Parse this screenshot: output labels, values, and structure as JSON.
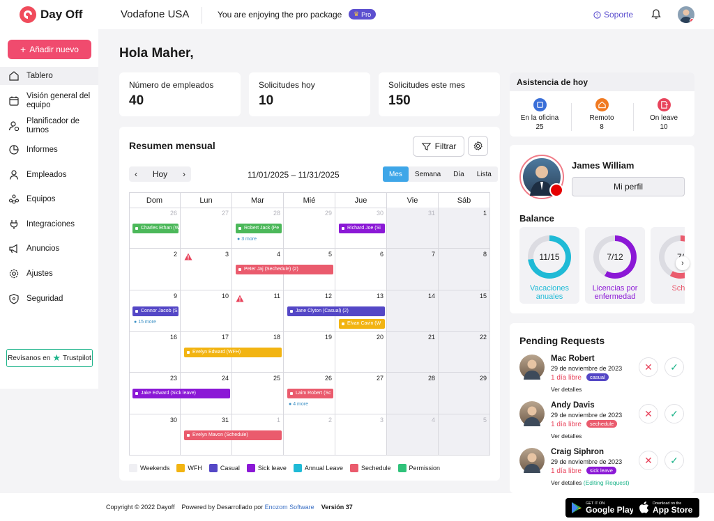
{
  "header": {
    "logo_text": "Day Off",
    "company": "Vodafone USA",
    "pro_text": "You are enjoying the pro package",
    "pro_badge": "Pro",
    "support": "Soporte"
  },
  "sidebar": {
    "add_button": "Añadir nuevo",
    "items": [
      {
        "label": "Tablero",
        "icon": "home-icon"
      },
      {
        "label": "Visión general del equipo",
        "icon": "calendar-icon"
      },
      {
        "label": "Planificador de turnos",
        "icon": "user-clock-icon"
      },
      {
        "label": "Informes",
        "icon": "pie-chart-icon"
      },
      {
        "label": "Empleados",
        "icon": "user-icon"
      },
      {
        "label": "Equipos",
        "icon": "team-icon"
      },
      {
        "label": "Integraciones",
        "icon": "plug-icon"
      },
      {
        "label": "Anuncios",
        "icon": "megaphone-icon"
      },
      {
        "label": "Ajustes",
        "icon": "gear-icon"
      },
      {
        "label": "Seguridad",
        "icon": "shield-icon"
      }
    ],
    "trustpilot_prefix": "Revísanos en",
    "trustpilot_brand": "Trustpilot"
  },
  "main": {
    "greeting": "Hola Maher,",
    "stats": [
      {
        "label": "Número de empleados",
        "value": "40"
      },
      {
        "label": "Solicitudes hoy",
        "value": "10"
      },
      {
        "label": "Solicitudes este mes",
        "value": "150"
      }
    ]
  },
  "calendar": {
    "title": "Resumen mensual",
    "filter": "Filtrar",
    "today": "Hoy",
    "range": "11/01/2025 – 11/31/2025",
    "views": [
      "Mes",
      "Semana",
      "Día",
      "Lista"
    ],
    "active_view": "Mes",
    "days": [
      "Dom",
      "Lun",
      "Mar",
      "Mié",
      "Jue",
      "Vie",
      "Sáb"
    ],
    "weeks": [
      [
        "26",
        "27",
        "28",
        "29",
        "30",
        "31",
        "1"
      ],
      [
        "2",
        "3",
        "4",
        "5",
        "6",
        "7",
        "8"
      ],
      [
        "9",
        "10",
        "11",
        "12",
        "13",
        "14",
        "15"
      ],
      [
        "16",
        "17",
        "18",
        "19",
        "20",
        "21",
        "22"
      ],
      [
        "23",
        "24",
        "25",
        "26",
        "27",
        "28",
        "29"
      ],
      [
        "30",
        "31",
        "1",
        "2",
        "3",
        "4",
        "5"
      ]
    ],
    "events": [
      {
        "text": "Charles Ethan (W",
        "week": 0,
        "day": 0,
        "span": 1,
        "lane": 0,
        "color": "#4cb85a"
      },
      {
        "text": "Robert Jack (Pe",
        "week": 0,
        "day": 2,
        "span": 1,
        "lane": 0,
        "color": "#4cb85a"
      },
      {
        "text": "Richard Joe (Si",
        "week": 0,
        "day": 4,
        "span": 1,
        "lane": 0,
        "color": "#8b18d6"
      },
      {
        "text": "Peter Jaj (Sechedule) (2)",
        "week": 1,
        "day": 2,
        "span": 2,
        "lane": 0,
        "color": "#ea5b6d"
      },
      {
        "text": "Connor Jacob (S",
        "week": 2,
        "day": 0,
        "span": 1,
        "lane": 0,
        "color": "#5447c6"
      },
      {
        "text": "Jane Clyton (Casual) (2)",
        "week": 2,
        "day": 3,
        "span": 2,
        "lane": 0,
        "color": "#5447c6"
      },
      {
        "text": "Elvan Cavin (W",
        "week": 2,
        "day": 4,
        "span": 1,
        "lane": 1,
        "color": "#f2b412"
      },
      {
        "text": "Evelyn Edward (WFH)",
        "week": 3,
        "day": 1,
        "span": 2,
        "lane": 0,
        "color": "#f2b412"
      },
      {
        "text": "Jake Edward (Sick leave)",
        "week": 4,
        "day": 0,
        "span": 2,
        "lane": 0,
        "color": "#8b18d6"
      },
      {
        "text": "Laim Robert (Sc",
        "week": 4,
        "day": 3,
        "span": 1,
        "lane": 0,
        "color": "#ea5b6d"
      },
      {
        "text": "Evelyn Mavon (Schedule)",
        "week": 5,
        "day": 1,
        "span": 2,
        "lane": 0,
        "color": "#ea5b6d"
      }
    ],
    "more_links": [
      {
        "text": "3 more",
        "week": 0,
        "day": 2
      },
      {
        "text": "15 more",
        "week": 2,
        "day": 0
      },
      {
        "text": "4 more",
        "week": 4,
        "day": 3
      }
    ],
    "warnings": [
      {
        "week": 1,
        "day": 1
      },
      {
        "week": 2,
        "day": 2
      }
    ],
    "legend": [
      {
        "label": "Weekends",
        "color": "#efeff3"
      },
      {
        "label": "WFH",
        "color": "#f2b412"
      },
      {
        "label": "Casual",
        "color": "#5447c6"
      },
      {
        "label": "Sick leave",
        "color": "#8b18d6"
      },
      {
        "label": "Annual Leave",
        "color": "#1fbad6"
      },
      {
        "label": "Sechedule",
        "color": "#ea5b6d"
      },
      {
        "label": "Permission",
        "color": "#2fc27a"
      }
    ]
  },
  "attendance": {
    "title": "Asistencia de hoy",
    "items": [
      {
        "label": "En la oficina",
        "value": "25",
        "color": "#3a6fd8"
      },
      {
        "label": "Remoto",
        "value": "8",
        "color": "#f07a22"
      },
      {
        "label": "On leave",
        "value": "10",
        "color": "#e8445c"
      }
    ]
  },
  "profile": {
    "name": "James William",
    "my_profile": "Mi perfil",
    "balance_title": "Balance",
    "balances": [
      {
        "value": "11/15",
        "label": "Vacaciones anuales",
        "fraction": 0.73,
        "color": "#1fbad6"
      },
      {
        "value": "7/12",
        "label": "Licencias por enfermedad",
        "fraction": 0.58,
        "color": "#8b18d6"
      },
      {
        "value": "7/",
        "label": "Sche",
        "fraction": 0.58,
        "color": "#ea5b6d"
      }
    ]
  },
  "pending": {
    "title": "Pending Requests",
    "requests": [
      {
        "name": "Mac Robert",
        "date": "29 de noviembre de 2023",
        "days": "1 día libre",
        "tag": "casual",
        "tag_color": "#5447c6",
        "details": "Ver detalles",
        "note": ""
      },
      {
        "name": "Andy Davis",
        "date": "29 de noviembre de 2023",
        "days": "1 día libre",
        "tag": "sechedule",
        "tag_color": "#ea5b6d",
        "details": "Ver detalles",
        "note": ""
      },
      {
        "name": "Craig Siphron",
        "date": "29 de noviembre de 2023",
        "days": "1 día libre",
        "tag": "sick leave",
        "tag_color": "#8b18d6",
        "details": "Ver detalles",
        "note": "(Editing Request)"
      }
    ]
  },
  "footer": {
    "copyright": "Copyright © 2022 Dayoff",
    "powered": "Powered by Desarrollado por",
    "powered_by": "Enozom Software",
    "version": "Versión 37",
    "google_small": "GET IT ON",
    "google_big": "Google Play",
    "apple_small": "Download on the",
    "apple_big": "App Store"
  }
}
